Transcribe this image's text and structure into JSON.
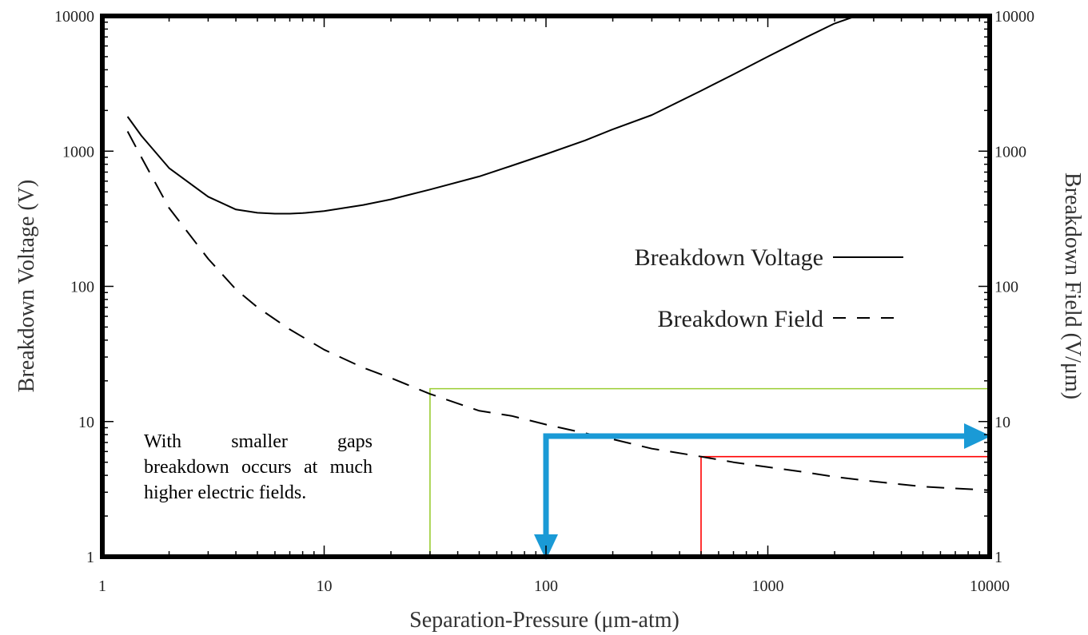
{
  "chart_data": {
    "type": "line",
    "xlabel": "Separation-Pressure (μm-atm)",
    "ylabel": "Breakdown Voltage (V)",
    "y2label": "Breakdown Field (V/μm)",
    "x_scale": "log",
    "y_scale": "log",
    "xlim": [
      1,
      10000
    ],
    "ylim": [
      1,
      10000
    ],
    "y2lim": [
      1,
      10000
    ],
    "x_ticks": [
      "1",
      "10",
      "100",
      "1000",
      "10000"
    ],
    "y_ticks": [
      "1",
      "10",
      "100",
      "1000",
      "10000"
    ],
    "y2_ticks": [
      "1",
      "10",
      "100",
      "1000",
      "10000"
    ],
    "grid": false,
    "legend_position": "right",
    "series": [
      {
        "name": "Breakdown Voltage",
        "style": "solid",
        "color": "#000000",
        "x": [
          1.3,
          1.5,
          2,
          3,
          4,
          5,
          6,
          7,
          8,
          10,
          15,
          20,
          30,
          50,
          70,
          100,
          150,
          200,
          300,
          500,
          700,
          1000,
          1500,
          2000,
          2500
        ],
        "y": [
          1800,
          1300,
          750,
          460,
          370,
          350,
          345,
          345,
          348,
          360,
          400,
          440,
          520,
          650,
          780,
          950,
          1200,
          1450,
          1850,
          2800,
          3700,
          5000,
          7000,
          8800,
          10000
        ]
      },
      {
        "name": "Breakdown Field",
        "style": "dashed",
        "color": "#000000",
        "x": [
          1.3,
          1.5,
          2,
          3,
          4,
          5,
          7,
          10,
          15,
          20,
          30,
          50,
          70,
          100,
          150,
          200,
          300,
          500,
          700,
          1000,
          1500,
          2000,
          3000,
          5000,
          7000,
          10000
        ],
        "y": [
          1400,
          900,
          380,
          160,
          95,
          70,
          48,
          34,
          25,
          21,
          16,
          12,
          11,
          9.5,
          8.2,
          7.4,
          6.3,
          5.5,
          5,
          4.6,
          4.2,
          3.9,
          3.6,
          3.3,
          3.2,
          3.1
        ]
      }
    ],
    "annotations": {
      "text": "With smaller gaps breakdown occurs at much higher electric fields.",
      "green_line": {
        "color": "#9acd32",
        "x": 30,
        "y": 17.5
      },
      "red_line": {
        "color": "#ff0000",
        "x": 500,
        "y": 5.5
      },
      "blue_arrow": {
        "color": "#1a9ad6",
        "x": 100,
        "y": 7.8
      }
    }
  }
}
